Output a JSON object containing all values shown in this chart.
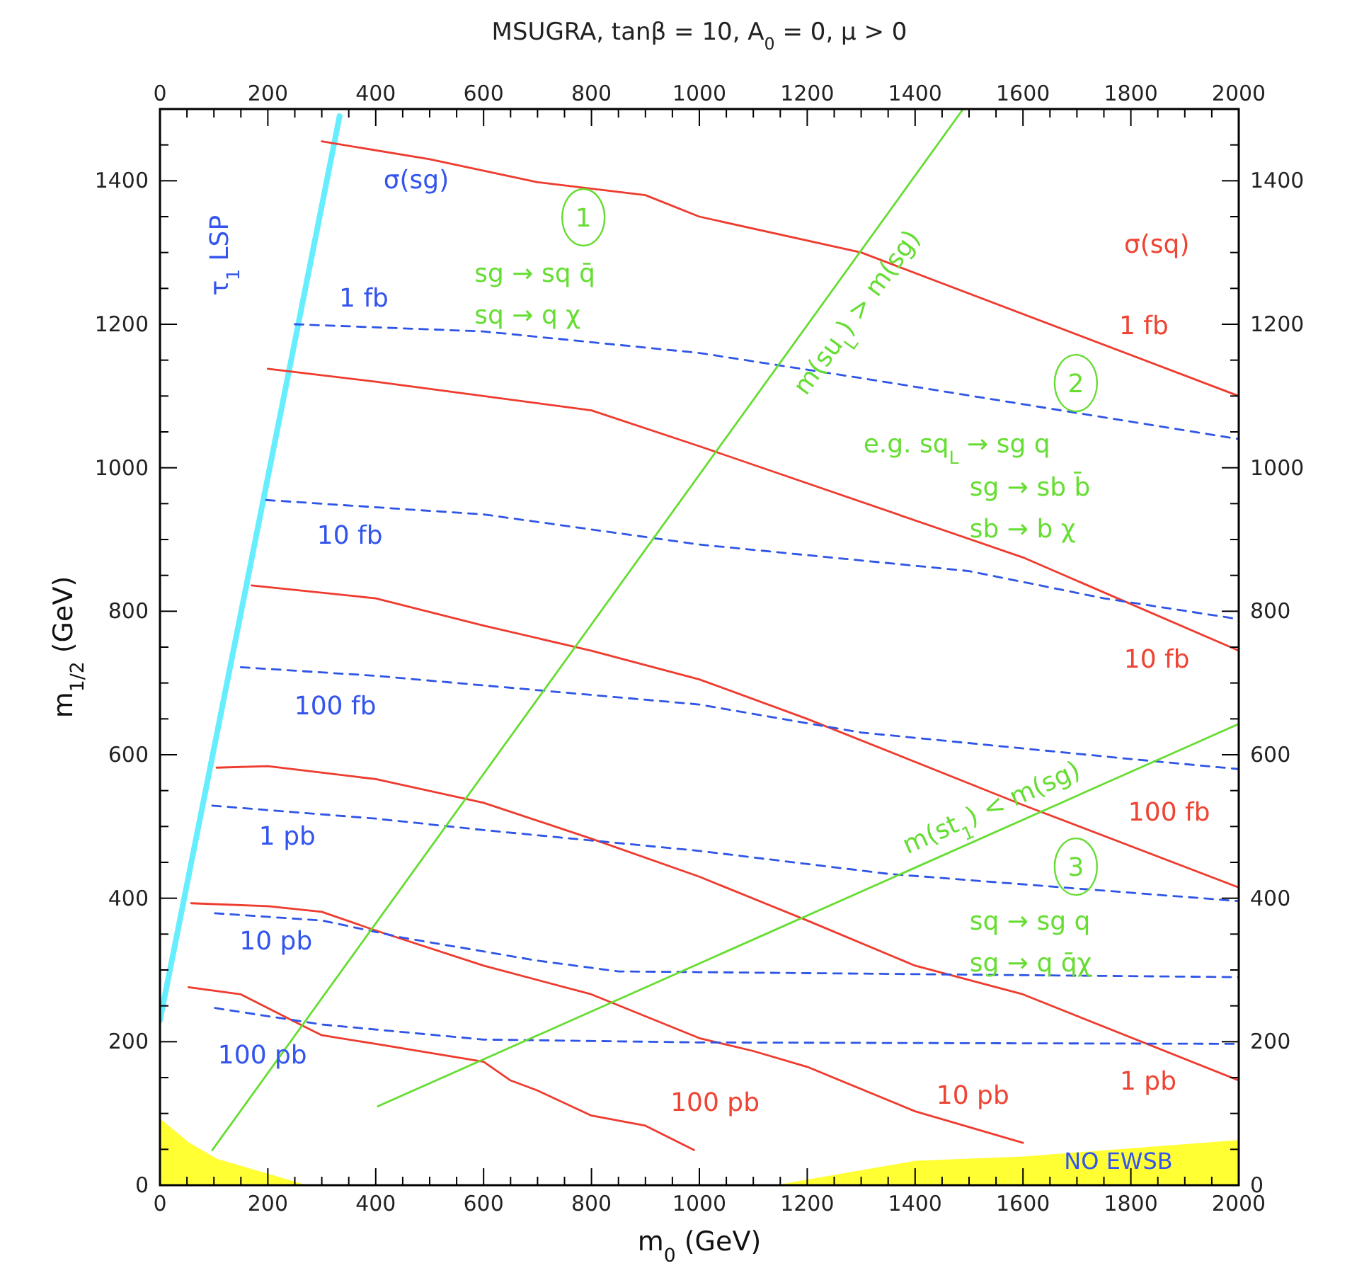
{
  "chart_data": {
    "type": "line",
    "title": "MSUGRA, tanβ = 10, A$_{0}$ = 0, μ > 0",
    "xlabel": "m$_{0}$ (GeV)",
    "ylabel": "m$_{1/2}$ (GeV)",
    "xlim": [
      0,
      2000
    ],
    "ylim": [
      0,
      1500
    ],
    "x2lim": [
      0,
      2000
    ],
    "y2lim": [
      0,
      1500
    ],
    "xticks": [
      0,
      {
        "value": 50,
        "label": null
      },
      {
        "value": 100,
        "label": null
      },
      {
        "value": 150,
        "label": null
      },
      200,
      {
        "value": 250,
        "label": null
      },
      {
        "value": 300,
        "label": null
      },
      {
        "value": 350,
        "label": null
      },
      400,
      {
        "value": 450,
        "label": null
      },
      {
        "value": 500,
        "label": null
      },
      {
        "value": 550,
        "label": null
      },
      600,
      {
        "value": 650,
        "label": null
      },
      {
        "value": 700,
        "label": null
      },
      {
        "value": 750,
        "label": null
      },
      800,
      {
        "value": 850,
        "label": null
      },
      {
        "value": 900,
        "label": null
      },
      {
        "value": 950,
        "label": null
      },
      1000,
      {
        "value": 1050,
        "label": null
      },
      {
        "value": 1100,
        "label": null
      },
      {
        "value": 1150,
        "label": null
      },
      1200,
      {
        "value": 1250,
        "label": null
      },
      {
        "value": 1300,
        "label": null
      },
      {
        "value": 1350,
        "label": null
      },
      1400,
      {
        "value": 1450,
        "label": null
      },
      {
        "value": 1500,
        "label": null
      },
      {
        "value": 1550,
        "label": null
      },
      1600,
      {
        "value": 1650,
        "label": null
      },
      {
        "value": 1700,
        "label": null
      },
      {
        "value": 1750,
        "label": null
      },
      1800,
      {
        "value": 1850,
        "label": null
      },
      {
        "value": 1900,
        "label": null
      },
      {
        "value": 1950,
        "label": null
      },
      2000
    ],
    "x2ticks": [
      0,
      {
        "value": 50,
        "label": null
      },
      {
        "value": 100,
        "label": null
      },
      {
        "value": 150,
        "label": null
      },
      200,
      {
        "value": 250,
        "label": null
      },
      {
        "value": 300,
        "label": null
      },
      {
        "value": 350,
        "label": null
      },
      400,
      {
        "value": 450,
        "label": null
      },
      {
        "value": 500,
        "label": null
      },
      {
        "value": 550,
        "label": null
      },
      600,
      {
        "value": 650,
        "label": null
      },
      {
        "value": 700,
        "label": null
      },
      {
        "value": 750,
        "label": null
      },
      800,
      {
        "value": 850,
        "label": null
      },
      {
        "value": 900,
        "label": null
      },
      {
        "value": 950,
        "label": null
      },
      1000,
      {
        "value": 1050,
        "label": null
      },
      {
        "value": 1100,
        "label": null
      },
      {
        "value": 1150,
        "label": null
      },
      1200,
      {
        "value": 1250,
        "label": null
      },
      {
        "value": 1300,
        "label": null
      },
      {
        "value": 1350,
        "label": null
      },
      1400,
      {
        "value": 1450,
        "label": null
      },
      {
        "value": 1500,
        "label": null
      },
      {
        "value": 1550,
        "label": null
      },
      1600,
      {
        "value": 1650,
        "label": null
      },
      {
        "value": 1700,
        "label": null
      },
      {
        "value": 1750,
        "label": null
      },
      1800,
      {
        "value": 1850,
        "label": null
      },
      {
        "value": 1900,
        "label": null
      },
      {
        "value": 1950,
        "label": null
      },
      2000
    ],
    "yticks": [
      0,
      {
        "value": 50,
        "label": null
      },
      {
        "value": 100,
        "label": null
      },
      {
        "value": 150,
        "label": null
      },
      200,
      {
        "value": 250,
        "label": null
      },
      {
        "value": 300,
        "label": null
      },
      {
        "value": 350,
        "label": null
      },
      400,
      {
        "value": 450,
        "label": null
      },
      {
        "value": 500,
        "label": null
      },
      {
        "value": 550,
        "label": null
      },
      600,
      {
        "value": 650,
        "label": null
      },
      {
        "value": 700,
        "label": null
      },
      {
        "value": 750,
        "label": null
      },
      800,
      {
        "value": 850,
        "label": null
      },
      {
        "value": 900,
        "label": null
      },
      {
        "value": 950,
        "label": null
      },
      1000,
      {
        "value": 1050,
        "label": null
      },
      {
        "value": 1100,
        "label": null
      },
      {
        "value": 1150,
        "label": null
      },
      1200,
      {
        "value": 1250,
        "label": null
      },
      {
        "value": 1300,
        "label": null
      },
      {
        "value": 1350,
        "label": null
      },
      1400,
      {
        "value": 1450,
        "label": null
      }
    ],
    "y2ticks": [
      0,
      {
        "value": 50,
        "label": null
      },
      {
        "value": 100,
        "label": null
      },
      {
        "value": 150,
        "label": null
      },
      200,
      {
        "value": 250,
        "label": null
      },
      {
        "value": 300,
        "label": null
      },
      {
        "value": 350,
        "label": null
      },
      400,
      {
        "value": 450,
        "label": null
      },
      {
        "value": 500,
        "label": null
      },
      {
        "value": 550,
        "label": null
      },
      600,
      {
        "value": 650,
        "label": null
      },
      {
        "value": 700,
        "label": null
      },
      {
        "value": 750,
        "label": null
      },
      800,
      {
        "value": 850,
        "label": null
      },
      {
        "value": 900,
        "label": null
      },
      {
        "value": 950,
        "label": null
      },
      1000,
      {
        "value": 1050,
        "label": null
      },
      {
        "value": 1100,
        "label": null
      },
      {
        "value": 1150,
        "label": null
      },
      1200,
      {
        "value": 1250,
        "label": null
      },
      {
        "value": 1300,
        "label": null
      },
      {
        "value": 1350,
        "label": null
      },
      1400,
      {
        "value": 1450,
        "label": null
      }
    ],
    "grid": false,
    "marker": "none",
    "series": [
      {
        "type": "area",
        "color": "#ffff33",
        "x": [
          0,
          53,
          105,
          273,
          1140,
          1400,
          1600,
          2000
        ],
        "values": [
          93,
          60,
          37,
          0,
          0,
          34,
          40,
          63
        ]
      },
      {
        "color": "#66eeff",
        "x": [
          0,
          333
        ],
        "values": [
          230,
          1490
        ]
      },
      {
        "type": "line",
        "color": "#ee3b2e",
        "x": [
          300,
          500,
          700,
          900,
          1000,
          1300,
          2000
        ],
        "values": [
          1455,
          1430,
          1398,
          1380,
          1350,
          1300,
          1100
        ]
      },
      {
        "type": "line",
        "color": "#ee3b2e",
        "x": [
          200,
          400,
          800,
          1000,
          1600,
          2000
        ],
        "values": [
          1138,
          1120,
          1080,
          1030,
          875,
          745
        ]
      },
      {
        "type": "line",
        "color": "#ee3b2e",
        "x": [
          170,
          400,
          600,
          800,
          1000,
          1200,
          1600,
          2000
        ],
        "values": [
          836,
          818,
          780,
          745,
          705,
          650,
          530,
          415
        ]
      },
      {
        "type": "line",
        "color": "#ee3b2e",
        "x": [
          105,
          200,
          400,
          600,
          800,
          1000,
          1200,
          1400,
          1600,
          2000
        ],
        "values": [
          582,
          584,
          566,
          533,
          483,
          430,
          369,
          306,
          266,
          146
        ]
      },
      {
        "type": "line",
        "color": "#ee3b2e",
        "x": [
          58,
          200,
          300,
          400,
          600,
          800,
          1000,
          1100,
          1200,
          1400,
          1600
        ],
        "values": [
          393,
          389,
          381,
          355,
          306,
          266,
          205,
          187,
          165,
          103,
          59
        ]
      },
      {
        "type": "line",
        "color": "#ee3b2e",
        "x": [
          53,
          150,
          260,
          300,
          400,
          600,
          650,
          700,
          800,
          900,
          990
        ],
        "values": [
          276,
          266,
          224,
          209,
          197,
          172,
          146,
          132,
          97,
          83,
          49
        ]
      },
      {
        "type": "line",
        "color": "#2f55e6",
        "line_style": "dashed",
        "x": [
          250,
          600,
          1000,
          1300,
          2000
        ],
        "values": [
          1200,
          1190,
          1160,
          1125,
          1040
        ]
      },
      {
        "type": "line",
        "color": "#2f55e6",
        "line_style": "dashed",
        "x": [
          197,
          600,
          1000,
          1500,
          1750,
          2000
        ],
        "values": [
          955,
          935,
          893,
          856,
          818,
          789
        ]
      },
      {
        "type": "line",
        "color": "#2f55e6",
        "line_style": "dashed",
        "x": [
          150,
          400,
          700,
          1000,
          1300,
          1800,
          2000
        ],
        "values": [
          722,
          710,
          690,
          670,
          631,
          594,
          580
        ]
      },
      {
        "type": "line",
        "color": "#2f55e6",
        "line_style": "dashed",
        "x": [
          97,
          400,
          600,
          1000,
          1350,
          2000
        ],
        "values": [
          529,
          511,
          495,
          466,
          434,
          396
        ]
      },
      {
        "type": "line",
        "color": "#2f55e6",
        "line_style": "dashed",
        "x": [
          102,
          300,
          450,
          700,
          850,
          1000,
          2000
        ],
        "values": [
          379,
          369,
          345,
          313,
          298,
          297,
          290
        ]
      },
      {
        "type": "line",
        "color": "#2f55e6",
        "line_style": "dashed",
        "x": [
          102,
          300,
          600,
          1000,
          2000
        ],
        "values": [
          247,
          224,
          203,
          199,
          197
        ]
      },
      {
        "type": "line",
        "color": "#66dd33",
        "x": [
          97,
          1488
        ],
        "values": [
          49,
          1499
        ]
      },
      {
        "type": "line",
        "color": "#66dd33",
        "x": [
          404,
          2000
        ],
        "values": [
          110,
          643
        ]
      }
    ],
    "annotations": [
      "σ(sg)",
      "1 fb",
      "10 fb",
      "100 fb",
      "1 pb",
      "10 pb",
      "100 pb",
      "σ(sq)",
      "1 fb",
      "10 fb",
      "100 fb",
      "1 pb",
      "10 pb",
      "100 pb",
      "1",
      "sg → sq q̄",
      "sq → q χ",
      "2",
      "e.g. sq$_{L}$ → sg q",
      "sg → sb b̄",
      "sb → b χ",
      "3",
      "sq → sg q",
      "sg → q q̄χ",
      "m(su$_{L}$) > m(sg)",
      "m(st$_{1}$) < m(sg)",
      "τ$_{1}$ LSP",
      "NO EWSB"
    ]
  }
}
